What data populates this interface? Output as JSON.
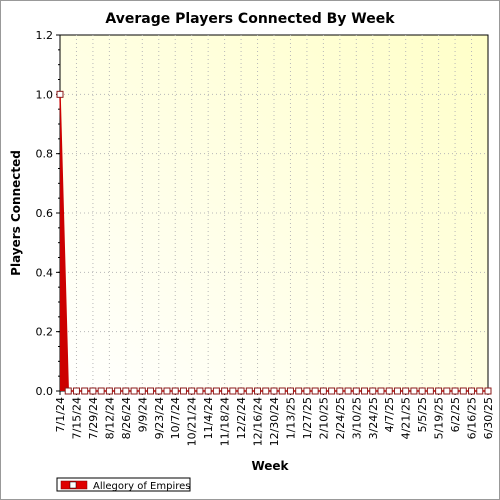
{
  "chart_data": {
    "type": "line",
    "title": "Average Players Connected By Week",
    "xlabel": "Week",
    "ylabel": "Players Connected",
    "ylim": [
      0,
      1.2
    ],
    "y_ticks": [
      "0.0",
      "0.2",
      "0.4",
      "0.6",
      "0.8",
      "1.0",
      "1.2"
    ],
    "x_tick_labels": [
      "7/1/24",
      "7/15/24",
      "7/29/24",
      "8/12/24",
      "8/26/24",
      "9/9/24",
      "9/23/24",
      "10/7/24",
      "10/21/24",
      "11/4/24",
      "11/18/24",
      "12/2/24",
      "12/16/24",
      "12/30/24",
      "1/13/25",
      "1/27/25",
      "2/10/25",
      "2/24/25",
      "3/10/25",
      "3/24/25",
      "4/7/25",
      "4/21/25",
      "5/5/25",
      "5/19/25",
      "6/2/25",
      "6/16/25",
      "6/30/25"
    ],
    "x_start": "2024-07-01",
    "x_end": "2025-06-30",
    "grid": true,
    "legend_position": "bottom-left",
    "series": [
      {
        "name": "Allegory of Empires",
        "color": "#cc0000",
        "x": [
          "2024-07-01",
          "2024-07-08",
          "2024-07-15",
          "2024-07-22",
          "2024-07-29",
          "2024-08-05",
          "2024-08-12",
          "2024-08-19",
          "2024-08-26",
          "2024-09-02",
          "2024-09-09",
          "2024-09-16",
          "2024-09-23",
          "2024-09-30",
          "2024-10-07",
          "2024-10-14",
          "2024-10-21",
          "2024-10-28",
          "2024-11-04",
          "2024-11-11",
          "2024-11-18",
          "2024-11-25",
          "2024-12-02",
          "2024-12-09",
          "2024-12-16",
          "2024-12-23",
          "2024-12-30",
          "2025-01-06",
          "2025-01-13",
          "2025-01-20",
          "2025-01-27",
          "2025-02-03",
          "2025-02-10",
          "2025-02-17",
          "2025-02-24",
          "2025-03-03",
          "2025-03-10",
          "2025-03-17",
          "2025-03-24",
          "2025-03-31",
          "2025-04-07",
          "2025-04-14",
          "2025-04-21",
          "2025-04-28",
          "2025-05-05",
          "2025-05-12",
          "2025-05-19",
          "2025-05-26",
          "2025-06-02",
          "2025-06-09",
          "2025-06-16",
          "2025-06-23",
          "2025-06-30"
        ],
        "values": [
          1.0,
          0.0,
          0.0,
          0.0,
          0.0,
          0.0,
          0.0,
          0.0,
          0.0,
          0.0,
          0.0,
          0.0,
          0.0,
          0.0,
          0.0,
          0.0,
          0.0,
          0.0,
          0.0,
          0.0,
          0.0,
          0.0,
          0.0,
          0.0,
          0.0,
          0.0,
          0.0,
          0.0,
          0.0,
          0.0,
          0.0,
          0.0,
          0.0,
          0.0,
          0.0,
          0.0,
          0.0,
          0.0,
          0.0,
          0.0,
          0.0,
          0.0,
          0.0,
          0.0,
          0.0,
          0.0,
          0.0,
          0.0,
          0.0,
          0.0,
          0.0,
          0.0,
          0.0
        ]
      }
    ]
  }
}
